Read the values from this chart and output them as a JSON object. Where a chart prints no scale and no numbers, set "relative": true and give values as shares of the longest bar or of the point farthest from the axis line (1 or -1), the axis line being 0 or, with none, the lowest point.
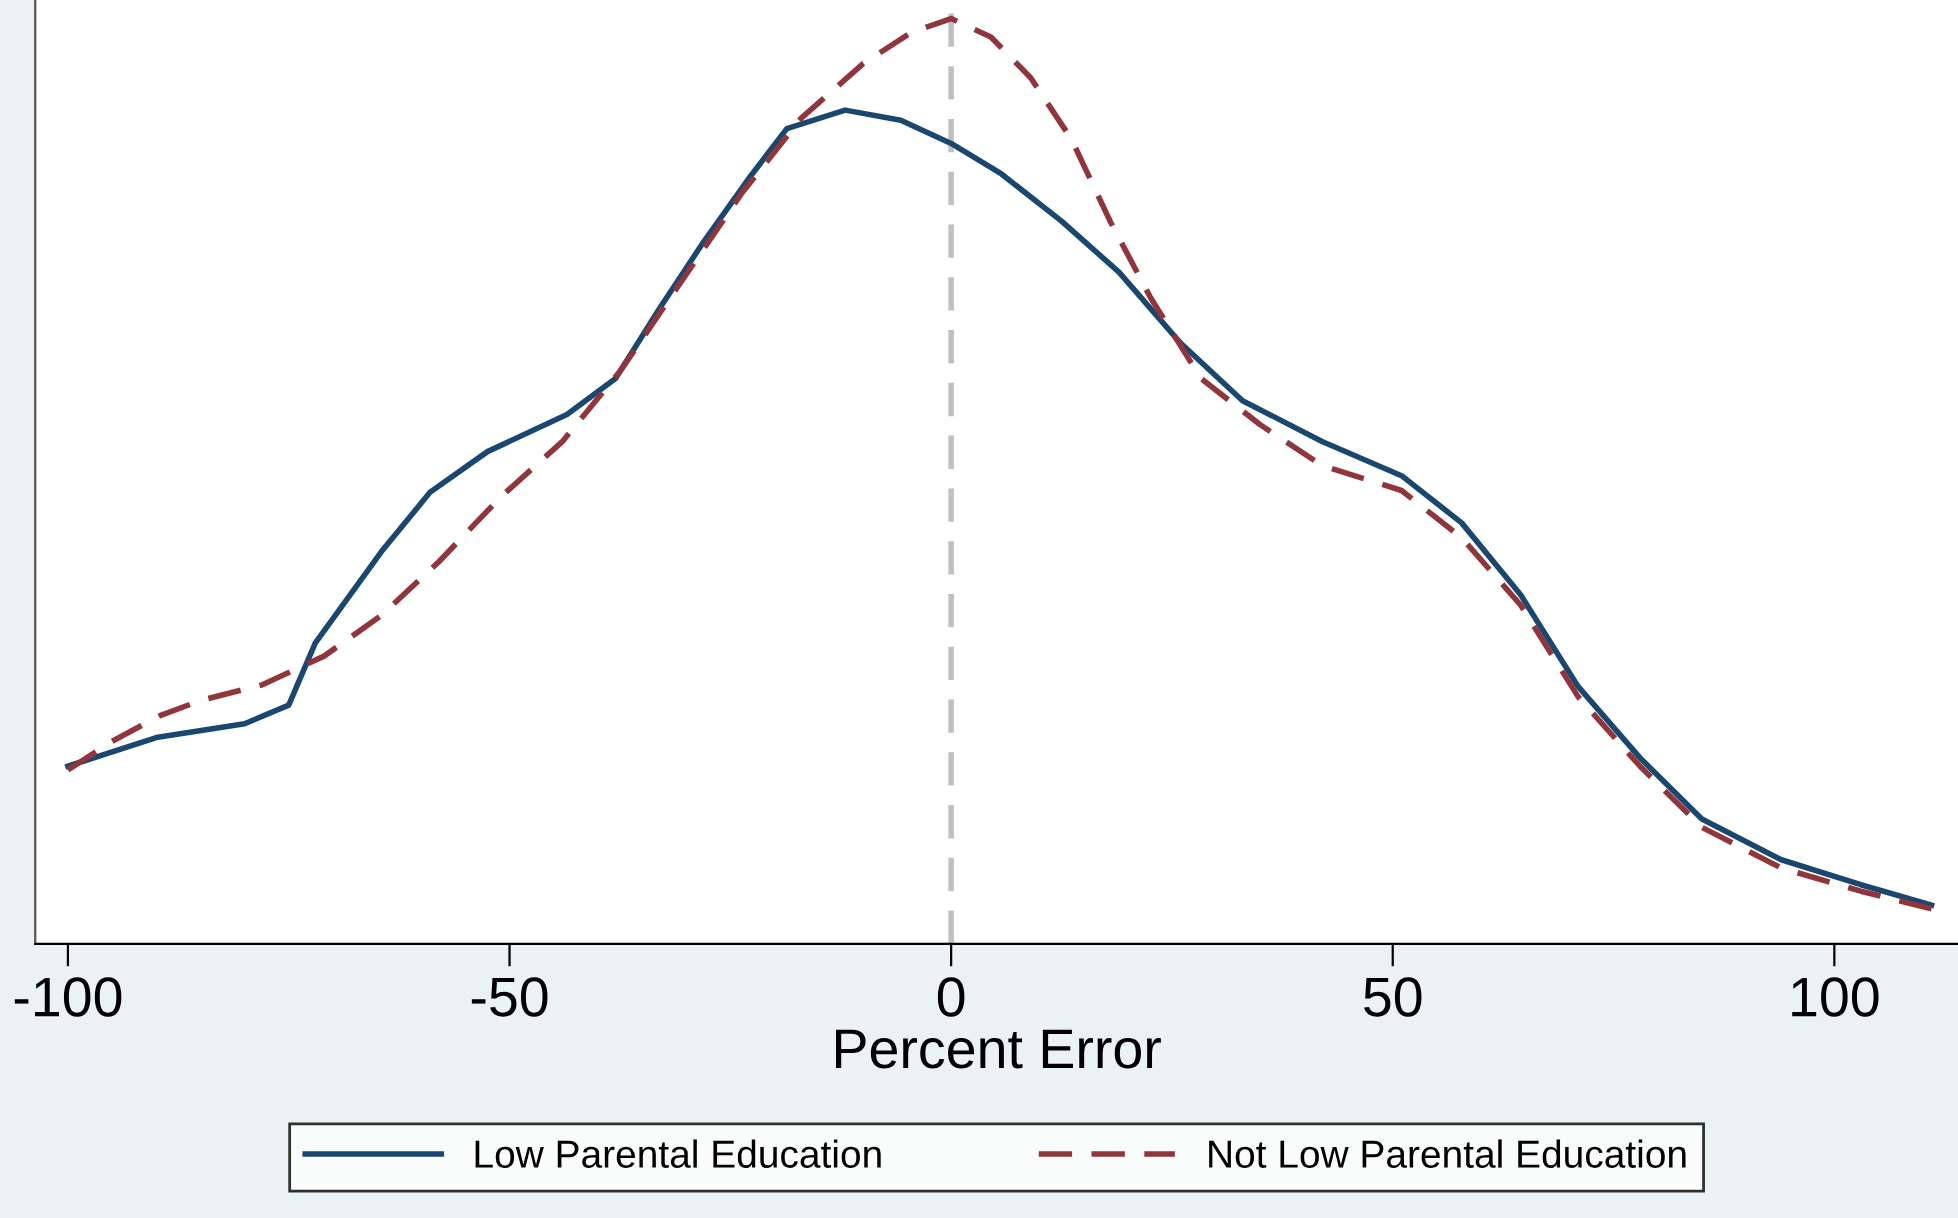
{
  "chart_data": {
    "type": "line",
    "relative": true,
    "xlabel": "Percent Error",
    "xlim": [
      -103.7,
      114
    ],
    "xticks": [
      -100,
      -50,
      0,
      50,
      100
    ],
    "tick_labels": "x",
    "grid": false,
    "legend": "bottom",
    "marker": "none",
    "ref_lines": [
      {
        "axis": "x",
        "value": 0,
        "color": "#c0c0c0",
        "line_style": "dashed"
      }
    ],
    "series": [
      {
        "name": "Low Parental Education",
        "color": "#1a476f",
        "line_style": "solid",
        "x": [
          -100,
          -90,
          -80,
          -75,
          -72,
          -64.5,
          -59,
          -52.5,
          -43.5,
          -38,
          -33,
          -28,
          -23,
          -18.6,
          -12,
          -5.7,
          0,
          5.7,
          12.5,
          19,
          26,
          33,
          42,
          51,
          57.8,
          64.5,
          71,
          78,
          85,
          94,
          103,
          111
        ],
        "values": [
          0.192,
          0.223,
          0.238,
          0.258,
          0.325,
          0.424,
          0.488,
          0.532,
          0.572,
          0.611,
          0.687,
          0.759,
          0.826,
          0.881,
          0.901,
          0.89,
          0.865,
          0.832,
          0.781,
          0.726,
          0.649,
          0.587,
          0.543,
          0.506,
          0.455,
          0.377,
          0.278,
          0.201,
          0.135,
          0.091,
          0.064,
          0.042
        ]
      },
      {
        "name": "Not Low Parental Education",
        "color": "#90353b",
        "line_style": "dashed",
        "x": [
          -100,
          -95,
          -89.5,
          -85,
          -78,
          -71,
          -64.5,
          -58,
          -51,
          -44,
          -37.4,
          -30.6,
          -23.8,
          -17,
          -10,
          -4.5,
          0,
          4.5,
          9,
          13.6,
          18,
          22.6,
          28.3,
          35,
          42,
          51,
          57.8,
          64.5,
          71,
          78,
          85,
          94,
          103,
          111
        ],
        "values": [
          0.188,
          0.219,
          0.247,
          0.263,
          0.28,
          0.311,
          0.355,
          0.413,
          0.483,
          0.543,
          0.62,
          0.715,
          0.81,
          0.892,
          0.951,
          0.985,
          1,
          0.98,
          0.936,
          0.87,
          0.781,
          0.698,
          0.611,
          0.561,
          0.517,
          0.49,
          0.439,
          0.366,
          0.267,
          0.192,
          0.126,
          0.082,
          0.057,
          0.038
        ]
      }
    ]
  }
}
